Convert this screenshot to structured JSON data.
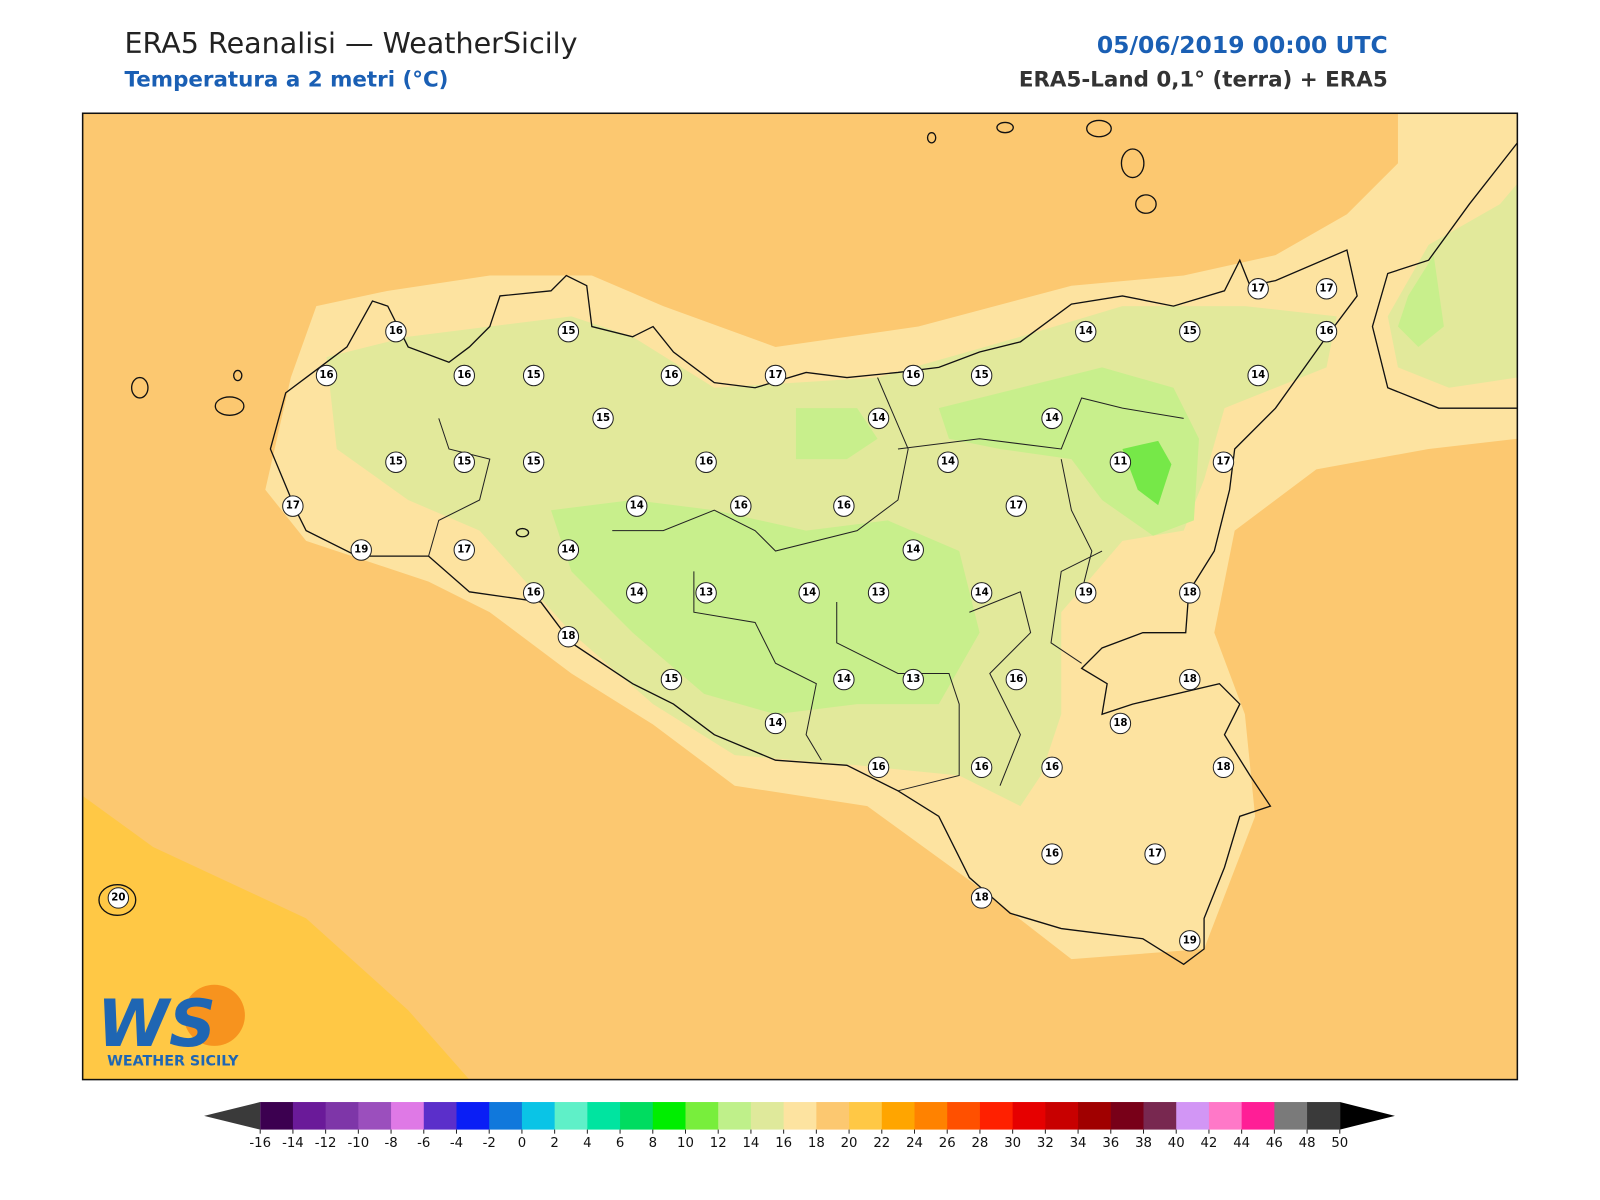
{
  "header": {
    "title": "ERA5 Reanalisi — WeatherSicily",
    "subtitle": "Temperatura a 2 metri (°C)",
    "datetime": "05/06/2019 00:00 UTC",
    "source": "ERA5-Land 0,1° (terra) + ERA5"
  },
  "stations": {
    "values": [
      16,
      15,
      16,
      16,
      15,
      16,
      17,
      15,
      15,
      15,
      15,
      16,
      17,
      14,
      16,
      16,
      19,
      17,
      14,
      16,
      14,
      13,
      14,
      13,
      18,
      15,
      14,
      14,
      13,
      16,
      16,
      15,
      14,
      14,
      14,
      14,
      15,
      17,
      17,
      16,
      14,
      11,
      17,
      17,
      14,
      14,
      19,
      18,
      16,
      18,
      18,
      18,
      16,
      16,
      16,
      17,
      18,
      19,
      20
    ]
  },
  "colorbar": {
    "ticks": [
      -16,
      -14,
      -12,
      -10,
      -8,
      -6,
      -4,
      -2,
      0,
      2,
      4,
      6,
      8,
      10,
      12,
      14,
      16,
      18,
      20,
      22,
      24,
      26,
      28,
      30,
      32,
      34,
      36,
      38,
      40,
      42,
      44,
      46,
      48,
      50
    ],
    "colors": [
      "#3c0050",
      "#6a1a99",
      "#7e36a8",
      "#9b4fbd",
      "#df79e6",
      "#5b2fca",
      "#0a1ef5",
      "#1078dc",
      "#0ac4e6",
      "#5ff0c8",
      "#00e4a0",
      "#00dc60",
      "#00ee00",
      "#78ee3c",
      "#bff08a",
      "#dfe99b",
      "#fde3a0",
      "#fcc870",
      "#ffc845",
      "#ffa500",
      "#ff8200",
      "#ff5000",
      "#ff2000",
      "#e60000",
      "#c80000",
      "#a00000",
      "#780018",
      "#782850",
      "#d296f5",
      "#ff78c8",
      "#ff1e96",
      "#7a7a7a",
      "#3a3a3a"
    ],
    "under_color": "#3a3a3a",
    "over_color": "#000000"
  },
  "logo": {
    "mark": "WS",
    "text": "WEATHER SICILY"
  }
}
